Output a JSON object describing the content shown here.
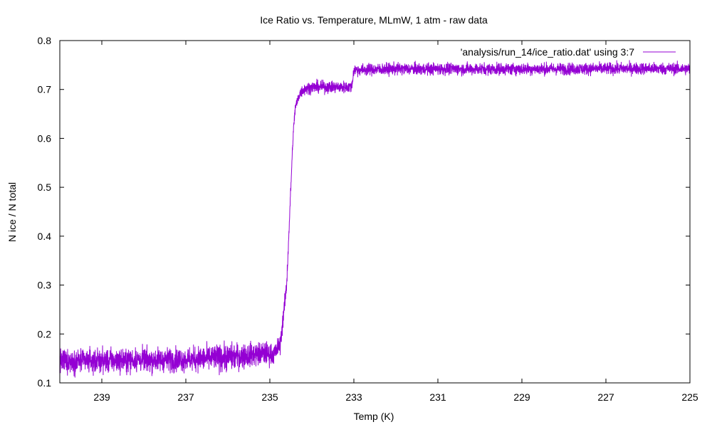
{
  "chart_data": {
    "type": "line",
    "title": "Ice Ratio vs. Temperature, MLmW, 1 atm - raw data",
    "xlabel": "Temp (K)",
    "ylabel": "N ice / N total",
    "xlim": [
      240,
      225
    ],
    "x_reversed": true,
    "ylim": [
      0.1,
      0.8
    ],
    "x_ticks": [
      239,
      237,
      235,
      233,
      231,
      229,
      227,
      225
    ],
    "y_ticks": [
      0.1,
      0.2,
      0.3,
      0.4,
      0.5,
      0.6,
      0.7,
      0.8
    ],
    "y_tick_labels": [
      "0.1",
      "0.2",
      "0.3",
      "0.4",
      "0.5",
      "0.6",
      "0.7",
      "0.8"
    ],
    "grid": false,
    "legend_position": "top-right",
    "series": [
      {
        "name": "'analysis/run_14/ice_ratio.dat' using 3:7",
        "color": "#9400d3",
        "x": [
          240,
          239,
          238,
          237,
          236,
          235.4,
          235.1,
          234.9,
          234.75,
          234.6,
          234.5,
          234.45,
          234.4,
          234.3,
          234.2,
          234.0,
          233.5,
          233.05,
          233.0,
          232.0,
          230.0,
          228.0,
          226.0,
          225
        ],
        "y": [
          0.145,
          0.145,
          0.147,
          0.148,
          0.152,
          0.158,
          0.16,
          0.158,
          0.18,
          0.3,
          0.5,
          0.6,
          0.66,
          0.69,
          0.7,
          0.705,
          0.705,
          0.705,
          0.74,
          0.742,
          0.742,
          0.742,
          0.743,
          0.742
        ],
        "noise": [
          0.012,
          0.012,
          0.012,
          0.012,
          0.014,
          0.012,
          0.012,
          0.01,
          0.01,
          0.008,
          0.006,
          0.006,
          0.006,
          0.006,
          0.006,
          0.006,
          0.006,
          0.006,
          0.006,
          0.006,
          0.006,
          0.006,
          0.006,
          0.006
        ]
      }
    ]
  }
}
